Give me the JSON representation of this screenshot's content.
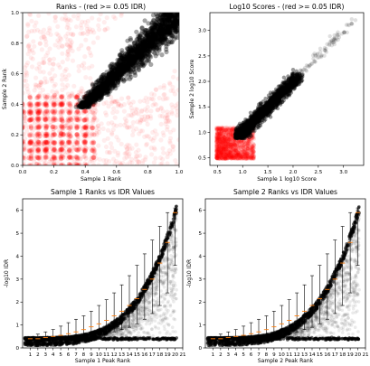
{
  "chart_data": [
    {
      "id": "p1",
      "type": "scatter",
      "title": "Ranks - (red >= 0.05 IDR)",
      "xlabel": "Sample 1 Rank",
      "ylabel": "Sample 2 Rank",
      "xlim": [
        0,
        1
      ],
      "ylim": [
        0,
        1
      ],
      "xticks": [
        0.0,
        0.2,
        0.4,
        0.6,
        0.8,
        1.0
      ],
      "yticks": [
        0.0,
        0.2,
        0.4,
        0.6,
        0.8,
        1.0
      ],
      "xtick_labels": [
        "0.0",
        "0.2",
        "0.4",
        "0.6",
        "0.8",
        "1.0"
      ],
      "ytick_labels": [
        "0.0",
        "0.2",
        "0.4",
        "0.6",
        "0.8",
        "1.0"
      ],
      "series": [
        {
          "color": "#ff0000",
          "region": "IDR >= 0.05 (irreproducible peaks), spread over ranks 0-1"
        },
        {
          "color": "#000000",
          "region": "reproducible peaks, dense band from about 0.4 to 1.0 along the diagonal"
        }
      ]
    },
    {
      "id": "p2",
      "type": "scatter",
      "title": "Log10 Scores - (red >= 0.05 IDR)",
      "xlabel": "Sample 1 log10 Score",
      "ylabel": "Sample 2 log10 Score",
      "xlim": [
        0.35,
        3.4
      ],
      "ylim": [
        0.35,
        3.35
      ],
      "xticks": [
        0.5,
        1.0,
        1.5,
        2.0,
        2.5,
        3.0
      ],
      "yticks": [
        0.5,
        1.0,
        1.5,
        2.0,
        2.5,
        3.0
      ],
      "xtick_labels": [
        "0.5",
        "1.0",
        "1.5",
        "2.0",
        "2.5",
        "3.0"
      ],
      "ytick_labels": [
        "0.5",
        "1.0",
        "1.5",
        "2.0",
        "2.5",
        "3.0"
      ],
      "series": [
        {
          "color": "#ff0000",
          "region": "IDR >= 0.05, scores 0.5-1.1"
        },
        {
          "color": "#000000",
          "region": "reproducible peaks, scores 0.9-2.1 along diagonal, sparse outliers up to 3.2"
        }
      ]
    },
    {
      "id": "p3",
      "type": "scatter",
      "title": "Sample 1 Ranks vs IDR Values",
      "xlabel": "Sample 1 Peak Rank",
      "ylabel": "-log10 IDR",
      "xlim": [
        0,
        21
      ],
      "ylim": [
        0,
        6.5
      ],
      "xticks": [
        1,
        2,
        3,
        4,
        5,
        6,
        7,
        8,
        9,
        10,
        11,
        12,
        13,
        14,
        15,
        16,
        17,
        18,
        19,
        20,
        21
      ],
      "yticks": [
        0,
        1,
        2,
        3,
        4,
        5,
        6
      ],
      "xtick_labels": [
        "1",
        "2",
        "3",
        "4",
        "5",
        "6",
        "7",
        "8",
        "9",
        "10",
        "11",
        "12",
        "13",
        "14",
        "15",
        "16",
        "17",
        "18",
        "19",
        "20",
        "21"
      ],
      "ytick_labels": [
        "0",
        "1",
        "2",
        "3",
        "4",
        "5",
        "6"
      ],
      "boxplot": {
        "positions": [
          1,
          2,
          3,
          4,
          5,
          6,
          7,
          8,
          9,
          10,
          11,
          12,
          13,
          14,
          15,
          16,
          17,
          18,
          19,
          20
        ],
        "median": [
          0.4,
          0.4,
          0.45,
          0.5,
          0.55,
          0.62,
          0.7,
          0.8,
          0.92,
          1.05,
          1.2,
          1.4,
          1.6,
          1.85,
          2.15,
          2.55,
          3.0,
          3.7,
          4.6,
          5.9
        ],
        "whisker_low": [
          0.4,
          0.4,
          0.4,
          0.4,
          0.4,
          0.4,
          0.4,
          0.45,
          0.5,
          0.55,
          0.6,
          0.7,
          0.8,
          0.9,
          1.05,
          1.25,
          1.5,
          1.85,
          2.4,
          3.6
        ],
        "whisker_high": [
          0.4,
          0.6,
          0.7,
          0.8,
          0.95,
          1.1,
          1.25,
          1.4,
          1.6,
          1.85,
          2.1,
          2.4,
          2.75,
          3.15,
          3.6,
          4.1,
          4.7,
          5.3,
          5.9,
          6.1
        ]
      }
    },
    {
      "id": "p4",
      "type": "scatter",
      "title": "Sample 2 Ranks vs IDR Values",
      "xlabel": "Sample 2 Peak Rank",
      "ylabel": "-log10 IDR",
      "xlim": [
        0,
        21
      ],
      "ylim": [
        0,
        6.5
      ],
      "xticks": [
        1,
        2,
        3,
        4,
        5,
        6,
        7,
        8,
        9,
        10,
        11,
        12,
        13,
        14,
        15,
        16,
        17,
        18,
        19,
        20,
        21
      ],
      "yticks": [
        0,
        1,
        2,
        3,
        4,
        5,
        6
      ],
      "xtick_labels": [
        "1",
        "2",
        "3",
        "4",
        "5",
        "6",
        "7",
        "8",
        "9",
        "10",
        "11",
        "12",
        "13",
        "14",
        "15",
        "16",
        "17",
        "18",
        "19",
        "20",
        "21"
      ],
      "ytick_labels": [
        "0",
        "1",
        "2",
        "3",
        "4",
        "5",
        "6"
      ],
      "boxplot": {
        "positions": [
          1,
          2,
          3,
          4,
          5,
          6,
          7,
          8,
          9,
          10,
          11,
          12,
          13,
          14,
          15,
          16,
          17,
          18,
          19,
          20
        ],
        "median": [
          0.4,
          0.4,
          0.45,
          0.5,
          0.55,
          0.62,
          0.7,
          0.8,
          0.92,
          1.05,
          1.2,
          1.4,
          1.6,
          1.85,
          2.15,
          2.55,
          3.0,
          3.7,
          4.6,
          5.9
        ],
        "whisker_low": [
          0.4,
          0.4,
          0.4,
          0.4,
          0.4,
          0.4,
          0.4,
          0.45,
          0.5,
          0.55,
          0.6,
          0.7,
          0.8,
          0.9,
          1.05,
          1.25,
          1.5,
          1.85,
          2.4,
          3.6
        ],
        "whisker_high": [
          0.4,
          0.6,
          0.7,
          0.8,
          0.95,
          1.1,
          1.25,
          1.4,
          1.6,
          1.85,
          2.1,
          2.4,
          2.75,
          3.15,
          3.6,
          4.1,
          4.7,
          5.3,
          5.9,
          6.1
        ]
      }
    }
  ]
}
